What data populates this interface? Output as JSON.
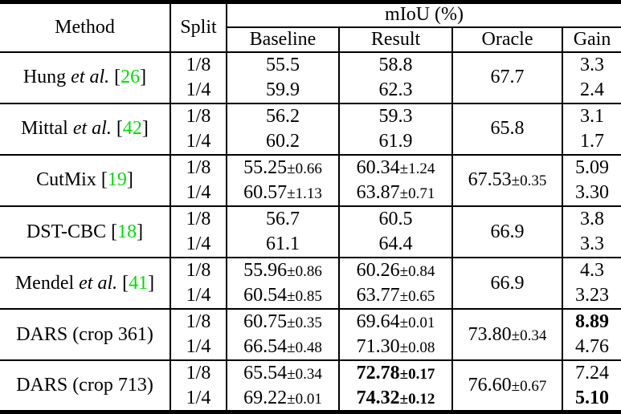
{
  "symbols": {
    "bracket_open": "[",
    "bracket_close": "]"
  },
  "colors": {
    "citation_green": "#00dd00",
    "text": "#000000",
    "border": "#000000",
    "background": "#ffffff"
  },
  "table": {
    "header": {
      "method": "Method",
      "split": "Split",
      "miou_group": "mIoU (%)",
      "sub": [
        "Baseline",
        "Result",
        "Oracle",
        "Gain"
      ]
    },
    "groups": [
      {
        "method": {
          "pre": "Hung ",
          "italic": "et al.",
          "post": " ",
          "cite": "26"
        },
        "oracle": {
          "v": "67.7",
          "pm": ""
        },
        "rows": [
          {
            "split": "1/8",
            "baseline": {
              "v": "55.5",
              "pm": ""
            },
            "result": {
              "v": "58.8",
              "pm": ""
            },
            "gain": {
              "v": "3.3",
              "pm": ""
            }
          },
          {
            "split": "1/4",
            "baseline": {
              "v": "59.9",
              "pm": ""
            },
            "result": {
              "v": "62.3",
              "pm": ""
            },
            "gain": {
              "v": "2.4",
              "pm": ""
            }
          }
        ]
      },
      {
        "method": {
          "pre": "Mittal ",
          "italic": "et al.",
          "post": " ",
          "cite": "42"
        },
        "oracle": {
          "v": "65.8",
          "pm": ""
        },
        "rows": [
          {
            "split": "1/8",
            "baseline": {
              "v": "56.2",
              "pm": ""
            },
            "result": {
              "v": "59.3",
              "pm": ""
            },
            "gain": {
              "v": "3.1",
              "pm": ""
            }
          },
          {
            "split": "1/4",
            "baseline": {
              "v": "60.2",
              "pm": ""
            },
            "result": {
              "v": "61.9",
              "pm": ""
            },
            "gain": {
              "v": "1.7",
              "pm": ""
            }
          }
        ]
      },
      {
        "method": {
          "pre": "CutMix ",
          "italic": "",
          "post": "",
          "cite": "19"
        },
        "oracle": {
          "v": "67.53",
          "pm": "±0.35"
        },
        "rows": [
          {
            "split": "1/8",
            "baseline": {
              "v": "55.25",
              "pm": "±0.66"
            },
            "result": {
              "v": "60.34",
              "pm": "±1.24"
            },
            "gain": {
              "v": "5.09",
              "pm": ""
            }
          },
          {
            "split": "1/4",
            "baseline": {
              "v": "60.57",
              "pm": "±1.13"
            },
            "result": {
              "v": "63.87",
              "pm": "±0.71"
            },
            "gain": {
              "v": "3.30",
              "pm": ""
            }
          }
        ]
      },
      {
        "method": {
          "pre": "DST-CBC ",
          "italic": "",
          "post": "",
          "cite": "18"
        },
        "oracle": {
          "v": "66.9",
          "pm": ""
        },
        "rows": [
          {
            "split": "1/8",
            "baseline": {
              "v": "56.7",
              "pm": ""
            },
            "result": {
              "v": "60.5",
              "pm": ""
            },
            "gain": {
              "v": "3.8",
              "pm": ""
            }
          },
          {
            "split": "1/4",
            "baseline": {
              "v": "61.1",
              "pm": ""
            },
            "result": {
              "v": "64.4",
              "pm": ""
            },
            "gain": {
              "v": "3.3",
              "pm": ""
            }
          }
        ]
      },
      {
        "method": {
          "pre": "Mendel ",
          "italic": "et al.",
          "post": " ",
          "cite": "41"
        },
        "oracle": {
          "v": "66.9",
          "pm": ""
        },
        "rows": [
          {
            "split": "1/8",
            "baseline": {
              "v": "55.96",
              "pm": "±0.86"
            },
            "result": {
              "v": "60.26",
              "pm": "±0.84"
            },
            "gain": {
              "v": "4.3",
              "pm": ""
            }
          },
          {
            "split": "1/4",
            "baseline": {
              "v": "60.54",
              "pm": "±0.85"
            },
            "result": {
              "v": "63.77",
              "pm": "±0.65"
            },
            "gain": {
              "v": "3.23",
              "pm": ""
            }
          }
        ]
      },
      {
        "method": {
          "pre": "DARS (crop 361)",
          "italic": "",
          "post": "",
          "cite": ""
        },
        "oracle": {
          "v": "73.80",
          "pm": "±0.34"
        },
        "rows": [
          {
            "split": "1/8",
            "baseline": {
              "v": "60.75",
              "pm": "±0.35"
            },
            "result": {
              "v": "69.64",
              "pm": "±0.01"
            },
            "gain": {
              "v": "8.89",
              "pm": "",
              "bold": true
            }
          },
          {
            "split": "1/4",
            "baseline": {
              "v": "66.54",
              "pm": "±0.48"
            },
            "result": {
              "v": "71.30",
              "pm": "±0.08"
            },
            "gain": {
              "v": "4.76",
              "pm": ""
            }
          }
        ]
      },
      {
        "method": {
          "pre": "DARS (crop 713)",
          "italic": "",
          "post": "",
          "cite": ""
        },
        "oracle": {
          "v": "76.60",
          "pm": "±0.67"
        },
        "rows": [
          {
            "split": "1/8",
            "baseline": {
              "v": "65.54",
              "pm": "±0.34"
            },
            "result": {
              "v": "72.78",
              "pm": "±0.17",
              "bold": true
            },
            "gain": {
              "v": "7.24",
              "pm": ""
            }
          },
          {
            "split": "1/4",
            "baseline": {
              "v": "69.22",
              "pm": "±0.01"
            },
            "result": {
              "v": "74.32",
              "pm": "±0.12",
              "bold": true
            },
            "gain": {
              "v": "5.10",
              "pm": "",
              "bold": true
            }
          }
        ]
      }
    ]
  }
}
